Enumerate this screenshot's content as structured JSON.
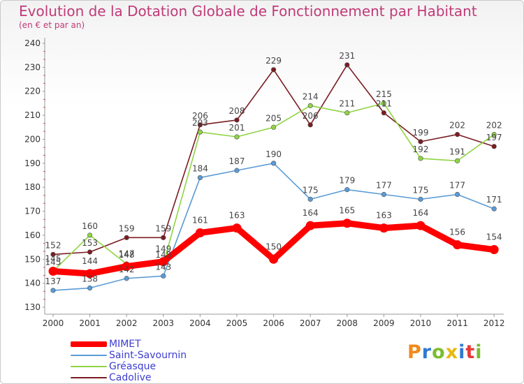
{
  "header": {
    "title": "Evolution de la Dotation Globale de Fonctionnement par Habitant",
    "subtitle": "(en € et par an)"
  },
  "logo": {
    "text": "Proxiti",
    "colors": [
      "#f08a1c",
      "#2f7ad1",
      "#7bbd2f",
      "#e8b810",
      "#2f7ad1",
      "#e63a3a",
      "#7bbd2f"
    ]
  },
  "chart_data": {
    "type": "line",
    "x": [
      2000,
      2001,
      2002,
      2003,
      2004,
      2005,
      2006,
      2007,
      2008,
      2009,
      2010,
      2011,
      2012
    ],
    "ylim": [
      130,
      240
    ],
    "yticks": [
      130,
      140,
      150,
      160,
      170,
      180,
      190,
      200,
      210,
      220,
      230,
      240
    ],
    "grid": false,
    "legend_position": "bottom-left",
    "series": [
      {
        "name": "Cadolive",
        "color": "#7a1c22",
        "values": [
          152,
          153,
          159,
          159,
          206,
          208,
          229,
          206,
          231,
          211,
          199,
          202,
          197
        ]
      },
      {
        "name": "Gréasque",
        "color": "#8fd444",
        "values": [
          145,
          160,
          148,
          148,
          203,
          201,
          205,
          214,
          211,
          215,
          192,
          191,
          202
        ]
      },
      {
        "name": "Saint-Savournin",
        "color": "#5a9bd5",
        "values": [
          137,
          138,
          142,
          143,
          184,
          187,
          190,
          175,
          179,
          177,
          175,
          177,
          171
        ]
      },
      {
        "name": "MIMET",
        "color": "#ff0000",
        "values": [
          145,
          144,
          147,
          149,
          161,
          163,
          150,
          164,
          165,
          163,
          164,
          156,
          154
        ]
      }
    ],
    "legend_order": [
      "MIMET",
      "Saint-Savournin",
      "Gréasque",
      "Cadolive"
    ]
  }
}
